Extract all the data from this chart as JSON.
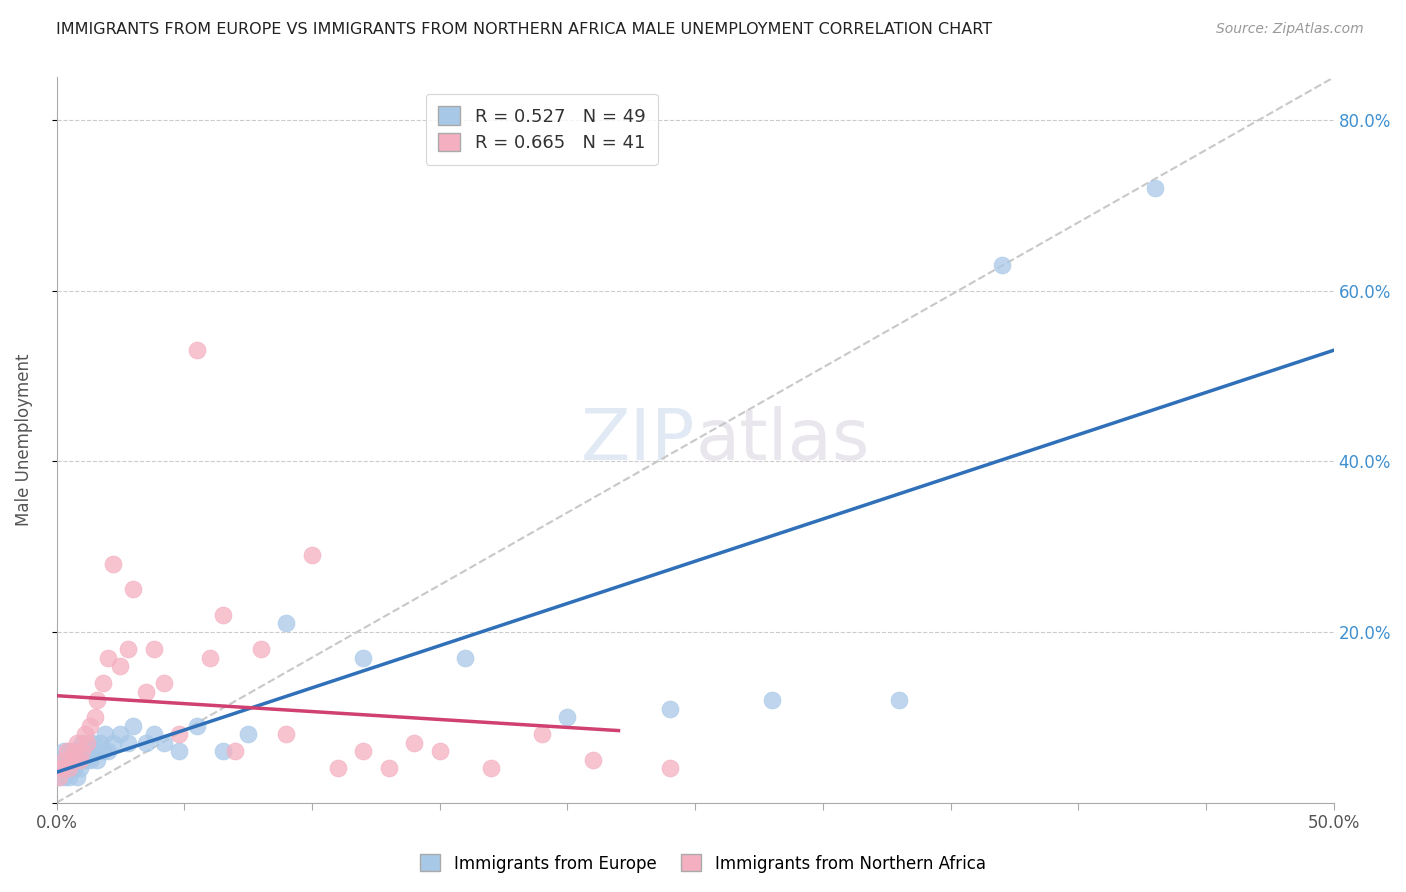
{
  "title": "IMMIGRANTS FROM EUROPE VS IMMIGRANTS FROM NORTHERN AFRICA MALE UNEMPLOYMENT CORRELATION CHART",
  "source": "Source: ZipAtlas.com",
  "ylabel": "Male Unemployment",
  "xlabel_legend1": "Immigrants from Europe",
  "xlabel_legend2": "Immigrants from Northern Africa",
  "xlim": [
    0.0,
    0.5
  ],
  "ylim": [
    0.0,
    0.85
  ],
  "xticks": [
    0.0,
    0.05,
    0.1,
    0.15,
    0.2,
    0.25,
    0.3,
    0.35,
    0.4,
    0.45,
    0.5
  ],
  "yticks": [
    0.0,
    0.2,
    0.4,
    0.6,
    0.8
  ],
  "xtick_labels_show": [
    "0.0%",
    "50.0%"
  ],
  "xtick_labels_pos": [
    0.0,
    0.5
  ],
  "ytick_labels": [
    "",
    "20.0%",
    "40.0%",
    "60.0%",
    "80.0%"
  ],
  "R_blue": 0.527,
  "N_blue": 49,
  "R_pink": 0.665,
  "N_pink": 41,
  "color_blue": "#a8c8e8",
  "color_pink": "#f4afc0",
  "color_blue_line": "#3070b8",
  "color_pink_line": "#d04070",
  "color_diag": "#c8c8c8",
  "color_yaxis": "#4090d0",
  "blue_x": [
    0.001,
    0.002,
    0.002,
    0.003,
    0.003,
    0.004,
    0.004,
    0.005,
    0.005,
    0.006,
    0.006,
    0.007,
    0.007,
    0.008,
    0.008,
    0.009,
    0.009,
    0.01,
    0.01,
    0.011,
    0.012,
    0.013,
    0.014,
    0.015,
    0.016,
    0.017,
    0.018,
    0.019,
    0.02,
    0.022,
    0.025,
    0.028,
    0.03,
    0.035,
    0.038,
    0.042,
    0.048,
    0.055,
    0.065,
    0.075,
    0.09,
    0.12,
    0.16,
    0.2,
    0.24,
    0.28,
    0.33,
    0.37,
    0.43
  ],
  "blue_y": [
    0.03,
    0.04,
    0.05,
    0.03,
    0.06,
    0.04,
    0.05,
    0.03,
    0.06,
    0.04,
    0.05,
    0.04,
    0.06,
    0.03,
    0.05,
    0.04,
    0.06,
    0.05,
    0.07,
    0.05,
    0.06,
    0.05,
    0.07,
    0.06,
    0.05,
    0.07,
    0.06,
    0.08,
    0.06,
    0.07,
    0.08,
    0.07,
    0.09,
    0.07,
    0.08,
    0.07,
    0.06,
    0.09,
    0.06,
    0.08,
    0.21,
    0.17,
    0.17,
    0.1,
    0.11,
    0.12,
    0.12,
    0.63,
    0.72
  ],
  "pink_x": [
    0.001,
    0.002,
    0.003,
    0.004,
    0.005,
    0.006,
    0.007,
    0.008,
    0.009,
    0.01,
    0.011,
    0.012,
    0.013,
    0.015,
    0.016,
    0.018,
    0.02,
    0.022,
    0.025,
    0.028,
    0.03,
    0.035,
    0.038,
    0.042,
    0.048,
    0.055,
    0.06,
    0.065,
    0.07,
    0.08,
    0.09,
    0.1,
    0.11,
    0.12,
    0.13,
    0.14,
    0.15,
    0.17,
    0.19,
    0.21,
    0.24
  ],
  "pink_y": [
    0.03,
    0.04,
    0.05,
    0.06,
    0.04,
    0.05,
    0.06,
    0.07,
    0.05,
    0.06,
    0.08,
    0.07,
    0.09,
    0.1,
    0.12,
    0.14,
    0.17,
    0.28,
    0.16,
    0.18,
    0.25,
    0.13,
    0.18,
    0.14,
    0.08,
    0.53,
    0.17,
    0.22,
    0.06,
    0.18,
    0.08,
    0.29,
    0.04,
    0.06,
    0.04,
    0.07,
    0.06,
    0.04,
    0.08,
    0.05,
    0.04
  ]
}
